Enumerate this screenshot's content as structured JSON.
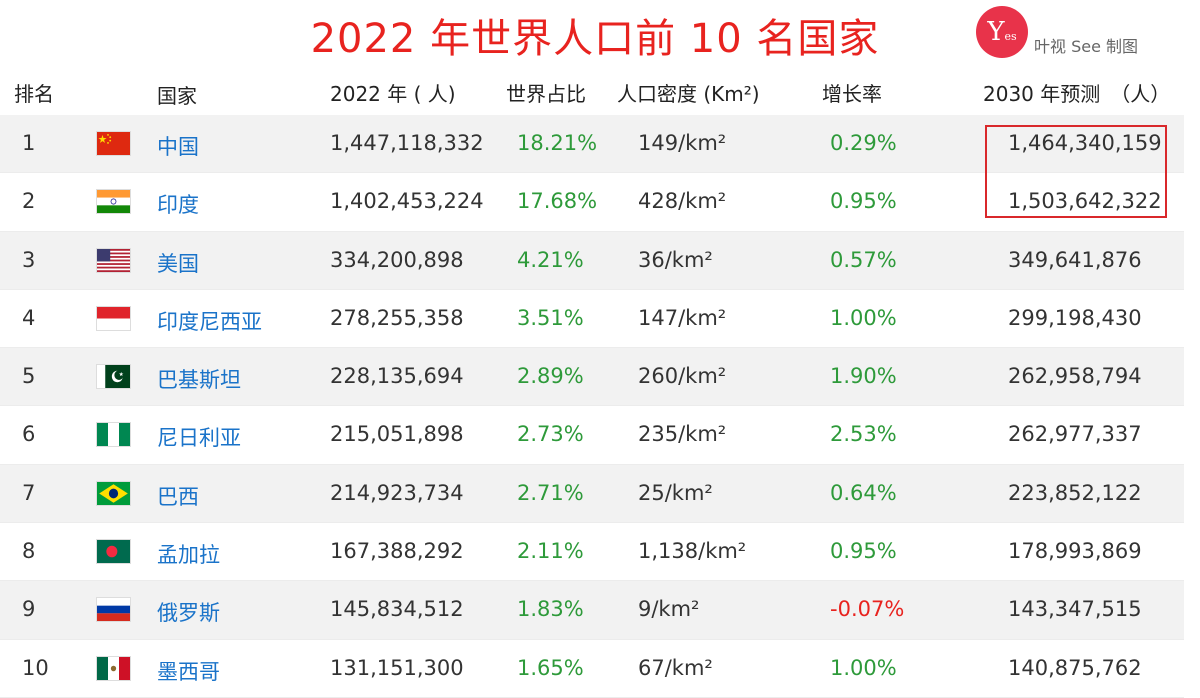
{
  "title": "2022 年世界人口前 10 名国家",
  "logo": {
    "mark": "Y",
    "sub": "es"
  },
  "brand_text": "叶视 See 制图",
  "chart_data": {
    "type": "table",
    "columns": [
      "排名",
      "国家",
      "2022 年 ( 人)",
      "世界占比",
      "人口密度 (Km²)",
      "增长率",
      "2030 年预测　（人）"
    ],
    "rows": [
      {
        "rank": "1",
        "country": "中国",
        "flag": "china",
        "pop": "1,447,118,332",
        "share": "18.21%",
        "density": "149/km²",
        "growth": "0.29%",
        "proj": "1,464,340,159"
      },
      {
        "rank": "2",
        "country": "印度",
        "flag": "india",
        "pop": "1,402,453,224",
        "share": "17.68%",
        "density": "428/km²",
        "growth": "0.95%",
        "proj": "1,503,642,322"
      },
      {
        "rank": "3",
        "country": "美国",
        "flag": "usa",
        "pop": "334,200,898",
        "share": "4.21%",
        "density": "36/km²",
        "growth": "0.57%",
        "proj": "349,641,876"
      },
      {
        "rank": "4",
        "country": "印度尼西亚",
        "flag": "indonesia",
        "pop": "278,255,358",
        "share": "3.51%",
        "density": "147/km²",
        "growth": "1.00%",
        "proj": "299,198,430"
      },
      {
        "rank": "5",
        "country": "巴基斯坦",
        "flag": "pakistan",
        "pop": "228,135,694",
        "share": "2.89%",
        "density": "260/km²",
        "growth": "1.90%",
        "proj": "262,958,794"
      },
      {
        "rank": "6",
        "country": "尼日利亚",
        "flag": "nigeria",
        "pop": "215,051,898",
        "share": "2.73%",
        "density": "235/km²",
        "growth": "2.53%",
        "proj": "262,977,337"
      },
      {
        "rank": "7",
        "country": "巴西",
        "flag": "brazil",
        "pop": "214,923,734",
        "share": "2.71%",
        "density": "25/km²",
        "growth": "0.64%",
        "proj": "223,852,122"
      },
      {
        "rank": "8",
        "country": "孟加拉",
        "flag": "bangladesh",
        "pop": "167,388,292",
        "share": "2.11%",
        "density": "1,138/km²",
        "growth": "0.95%",
        "proj": "178,993,869"
      },
      {
        "rank": "9",
        "country": "俄罗斯",
        "flag": "russia",
        "pop": "145,834,512",
        "share": "1.83%",
        "density": "9/km²",
        "growth": "-0.07%",
        "proj": "143,347,515"
      },
      {
        "rank": "10",
        "country": "墨西哥",
        "flag": "mexico",
        "pop": "131,151,300",
        "share": "1.65%",
        "density": "67/km²",
        "growth": "1.00%",
        "proj": "140,875,762"
      }
    ],
    "highlighted_rows": [
      1,
      2
    ],
    "highlighted_column": "2030 年预测　（人）"
  },
  "colors": {
    "title": "#e8231f",
    "country_link": "#1a73c9",
    "positive": "#2e9a3a",
    "negative": "#e8231f",
    "highlight_box": "#d9282b",
    "row_alt": "#f2f2f2"
  }
}
